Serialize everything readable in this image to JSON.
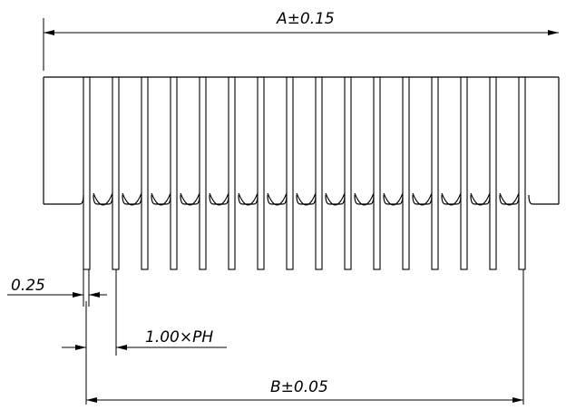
{
  "drawing": {
    "type": "connector pin dimension drawing",
    "line_color": "#000000",
    "background_color": "#ffffff",
    "pin_count": 16
  },
  "dimensions": {
    "overall_width_label": "A±0.15",
    "pin_span_label": "B±0.05",
    "pin_width_label": "0.25",
    "pitch_label": "1.00×PH"
  }
}
